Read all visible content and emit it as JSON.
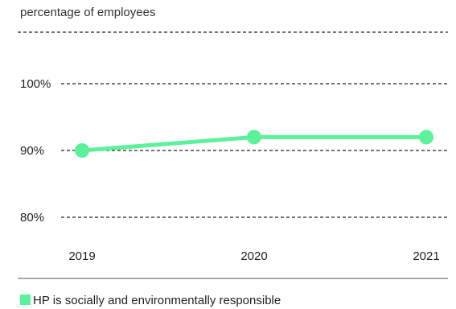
{
  "chart_data": {
    "type": "line",
    "subtitle": "percentage of employees",
    "title": "",
    "xlabel": "",
    "ylabel": "",
    "categories": [
      "2019",
      "2020",
      "2021"
    ],
    "series": [
      {
        "name": "HP is socially and environmentally responsible",
        "values": [
          90,
          92,
          92
        ],
        "color": "#5cf29a"
      }
    ],
    "ylim": [
      80,
      100
    ],
    "y_ticks": [
      {
        "value": 80,
        "label": "80%"
      },
      {
        "value": 90,
        "label": "90%"
      },
      {
        "value": 100,
        "label": "100%"
      }
    ],
    "grid": true,
    "grid_style": "dashed",
    "legend_position": "bottom-left"
  }
}
